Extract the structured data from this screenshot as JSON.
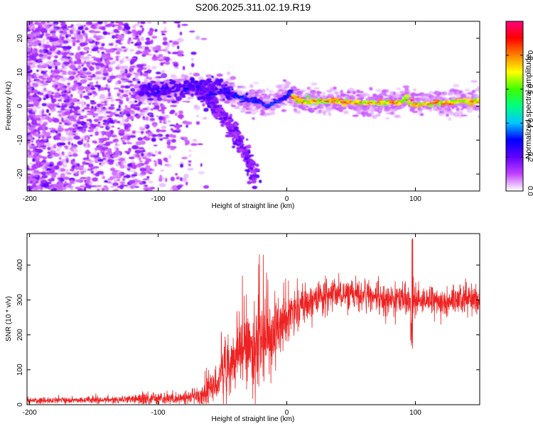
{
  "page_title": "S206.2025.311.02.19.R19",
  "chart_data": [
    {
      "type": "heatmap",
      "title": "S206.2025.311.02.19.R19",
      "xlabel": "Height of straight line (km)",
      "ylabel": "Frequency (Hz)",
      "xlim": [
        -202,
        150
      ],
      "ylim": [
        -25,
        25
      ],
      "x_ticks": [
        -200,
        -100,
        0,
        100
      ],
      "y_ticks": [
        -20,
        -10,
        0,
        10,
        20
      ],
      "colorbar": {
        "label": "Normalized spectral amplitude",
        "range": [
          0,
          1
        ],
        "ticks": [
          0.0,
          0.2,
          0.4,
          0.6,
          0.8
        ],
        "colors": [
          "#ffffff",
          "#c040ff",
          "#6000ff",
          "#0000ff",
          "#00c8ff",
          "#00ff80",
          "#40ff00",
          "#ffff00",
          "#ff8000",
          "#ff0000",
          "#ff0080"
        ]
      },
      "features": {
        "noise_region_x": [
          -202,
          -115
        ],
        "main_trace": [
          [
            -115,
            4
          ],
          [
            -90,
            5
          ],
          [
            -70,
            6
          ],
          [
            -50,
            5
          ],
          [
            -40,
            3
          ],
          [
            -30,
            2
          ],
          [
            -20,
            1
          ],
          [
            -15,
            0
          ],
          [
            -10,
            1
          ],
          [
            -5,
            2
          ],
          [
            0,
            3
          ],
          [
            3,
            4
          ],
          [
            8,
            1.5
          ],
          [
            30,
            1.5
          ],
          [
            60,
            1
          ],
          [
            90,
            1
          ],
          [
            93,
            3
          ],
          [
            96,
            0.5
          ],
          [
            120,
            1
          ],
          [
            150,
            1.5
          ]
        ],
        "branch_trace": [
          [
            -70,
            5
          ],
          [
            -60,
            2
          ],
          [
            -50,
            -3
          ],
          [
            -40,
            -8
          ],
          [
            -30,
            -15
          ],
          [
            -24,
            -22
          ]
        ]
      }
    },
    {
      "type": "line",
      "xlabel": "Height of straight line (km)",
      "ylabel": "SNR (10 * v/v)",
      "xlim": [
        -202,
        150
      ],
      "ylim": [
        0,
        490
      ],
      "x_ticks": [
        -200,
        -100,
        0,
        100
      ],
      "y_ticks": [
        0,
        100,
        200,
        300,
        400
      ],
      "series": [
        {
          "name": "SNR",
          "color": "#ee2222",
          "envelope_x": [
            -202,
            -120,
            -110,
            -90,
            -80,
            -70,
            -60,
            -55,
            -50,
            -40,
            -30,
            -20,
            -15,
            -10,
            0,
            10,
            20,
            30,
            40,
            50,
            60,
            70,
            80,
            90,
            95,
            97,
            98,
            99,
            100,
            105,
            110,
            120,
            130,
            140,
            150
          ],
          "envelope_mean": [
            12,
            14,
            18,
            18,
            22,
            25,
            35,
            60,
            90,
            130,
            160,
            190,
            200,
            210,
            250,
            275,
            300,
            315,
            320,
            320,
            310,
            305,
            300,
            300,
            300,
            250,
            200,
            300,
            300,
            300,
            300,
            295,
            300,
            305,
            295
          ],
          "envelope_amp": [
            8,
            10,
            20,
            15,
            18,
            18,
            40,
            50,
            60,
            80,
            100,
            120,
            110,
            100,
            60,
            50,
            45,
            40,
            40,
            40,
            40,
            40,
            40,
            40,
            40,
            80,
            150,
            60,
            40,
            35,
            35,
            35,
            35,
            40,
            40
          ]
        }
      ]
    }
  ]
}
